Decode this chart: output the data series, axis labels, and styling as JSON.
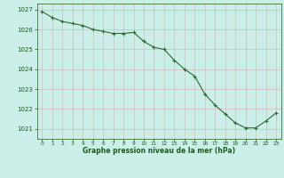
{
  "x": [
    0,
    1,
    2,
    3,
    4,
    5,
    6,
    7,
    8,
    9,
    10,
    11,
    12,
    13,
    14,
    15,
    16,
    17,
    18,
    19,
    20,
    21,
    22,
    23
  ],
  "y": [
    1026.9,
    1026.6,
    1026.4,
    1026.3,
    1026.2,
    1026.0,
    1025.9,
    1025.8,
    1025.8,
    1025.85,
    1025.4,
    1025.1,
    1025.0,
    1024.45,
    1024.0,
    1023.65,
    1022.75,
    1022.2,
    1021.75,
    1021.3,
    1021.05,
    1021.05,
    1021.4,
    1021.8
  ],
  "line_color": "#2d6a2d",
  "marker": "+",
  "marker_size": 3,
  "bg_color": "#cceee8",
  "grid_color_major": "#aaddcc",
  "grid_color_minor": "#c8ebe4",
  "xlabel": "Graphe pression niveau de la mer (hPa)",
  "xlabel_color": "#1a5c1a",
  "tick_color": "#1a5c1a",
  "ylim": [
    1020.5,
    1027.3
  ],
  "xlim": [
    -0.5,
    23.5
  ],
  "yticks": [
    1021,
    1022,
    1023,
    1024,
    1025,
    1026,
    1027
  ],
  "xticks": [
    0,
    1,
    2,
    3,
    4,
    5,
    6,
    7,
    8,
    9,
    10,
    11,
    12,
    13,
    14,
    15,
    16,
    17,
    18,
    19,
    20,
    21,
    22,
    23
  ]
}
